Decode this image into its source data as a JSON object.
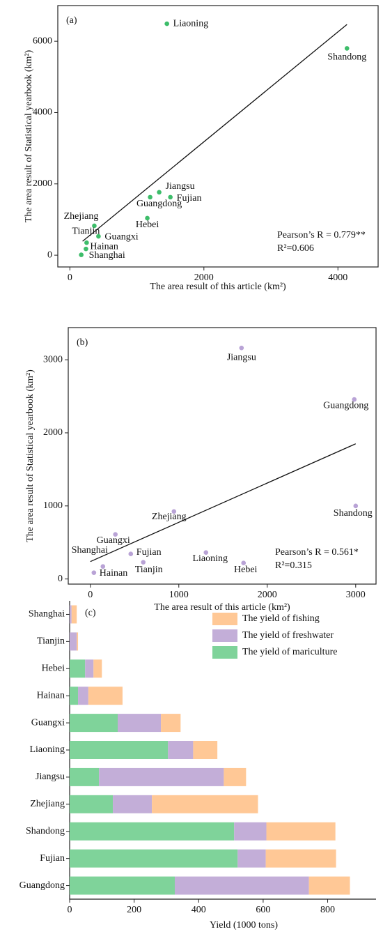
{
  "chart_data": [
    {
      "type": "scatter",
      "title": "(a)",
      "x_label": "The area result of this article (km²)",
      "y_label": "The area result of Statistical yearbook (km²)",
      "labels": [
        "Liaoning",
        "Shandong",
        "Jiangsu",
        "Guangdong",
        "Fujian",
        "Hebei",
        "Zhejiang",
        "Tianjin",
        "Guangxi",
        "Hainan",
        "Shanghai"
      ],
      "x": [
        1448,
        4135,
        1333,
        1198,
        1500,
        1156,
        365,
        250,
        427,
        240,
        170
      ],
      "values": [
        6490,
        5800,
        1765,
        1627,
        1627,
        1039,
        824,
        350,
        529,
        176,
        10
      ],
      "color": "#3dbd6a",
      "fit": {
        "x": [
          190,
          4135
        ],
        "y": [
          390,
          6470
        ]
      },
      "annotations": [
        "Pearson’s R = 0.779**",
        "R²=0.606"
      ],
      "xlim": [
        -180,
        4600
      ],
      "ylim": [
        -330,
        7000
      ],
      "xticks": [
        0,
        2000,
        4000
      ],
      "yticks": [
        0,
        2000,
        4000,
        6000
      ]
    },
    {
      "type": "scatter",
      "title": "(b)",
      "x_label": "The area result of this article (km²)",
      "y_label": "The area result of Statistical yearbook (km²)",
      "labels": [
        "Jiangsu",
        "Guangdong",
        "Shandong",
        "Zhejiang",
        "Guangxi",
        "Fujian",
        "Liaoning",
        "Tianjin",
        "Hebei",
        "Hainan",
        "Shanghai"
      ],
      "x": [
        1709,
        2984,
        3000,
        945,
        283,
        457,
        1307,
        598,
        1732,
        142,
        40
      ],
      "values": [
        3162,
        2457,
        1000,
        924,
        610,
        343,
        362,
        229,
        219,
        171,
        86
      ],
      "color": "#b9a3d6",
      "fit": {
        "x": [
          0,
          3000
        ],
        "y": [
          238,
          1850
        ]
      },
      "annotations": [
        "Pearson’s R = 0.561*",
        "R²=0.315"
      ],
      "xlim": [
        -250,
        3230
      ],
      "ylim": [
        -70,
        3440
      ],
      "xticks": [
        0,
        1000,
        2000,
        3000
      ],
      "yticks": [
        0,
        1000,
        2000,
        3000
      ]
    },
    {
      "type": "stacked-barh",
      "title": "(c)",
      "x_label": "Yield (1000 tons)",
      "categories": [
        "Shanghai",
        "Tianjin",
        "Hebei",
        "Hainan",
        "Guangxi",
        "Liaoning",
        "Jiangsu",
        "Zhejiang",
        "Shandong",
        "Fujian",
        "Guangdong"
      ],
      "series": [
        {
          "name": "The yield of mariculture",
          "color": "#7fd39a",
          "values": [
            0,
            0,
            48,
            26,
            149,
            305,
            91,
            134,
            510,
            521,
            326
          ]
        },
        {
          "name": "The yield of freshwater",
          "color": "#c3aed8",
          "values": [
            6,
            22,
            26,
            32,
            134,
            78,
            387,
            121,
            100,
            87,
            416
          ]
        },
        {
          "name": "The yield of fishing",
          "color": "#ffc896",
          "values": [
            16,
            4,
            26,
            106,
            61,
            75,
            69,
            329,
            214,
            218,
            127
          ]
        }
      ],
      "xlim": [
        0,
        950
      ],
      "xticks": [
        0,
        200,
        400,
        600,
        800
      ]
    }
  ]
}
